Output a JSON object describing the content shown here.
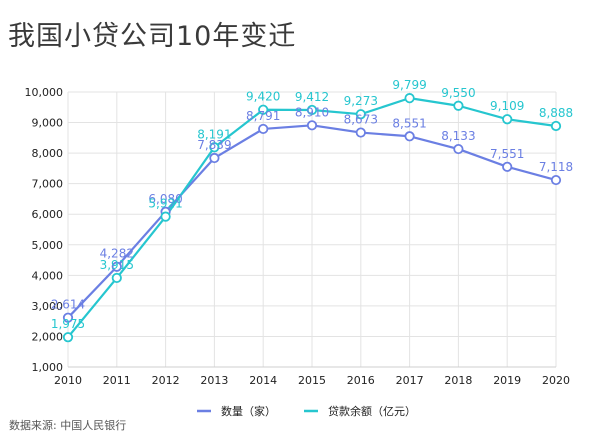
{
  "title": "我国小贷公司10年变迁",
  "source": "数据来源: 中国人民银行",
  "colors": {
    "series1": "#6b7fe3",
    "series2": "#26c6cf"
  },
  "chart_data": {
    "type": "line",
    "x": [
      2010,
      2011,
      2012,
      2013,
      2014,
      2015,
      2016,
      2017,
      2018,
      2019,
      2020
    ],
    "series": [
      {
        "name": "数量（家）",
        "color": "#6b7fe3",
        "values": [
          2614,
          4282,
          6080,
          7839,
          8791,
          8910,
          8673,
          8551,
          8133,
          7551,
          7118
        ],
        "labels": [
          "2,614",
          "4,282",
          "6,080",
          "7,839",
          "8,791",
          "8,910",
          "8,673",
          "8,551",
          "8,133",
          "7,551",
          "7,118"
        ]
      },
      {
        "name": "贷款余额（亿元）",
        "color": "#26c6cf",
        "values": [
          1975,
          3915,
          5921,
          8191,
          9420,
          9412,
          9273,
          9799,
          9550,
          9109,
          8888
        ],
        "labels": [
          "1,975",
          "3,915",
          "5,921",
          "8,191",
          "9,420",
          "9,412",
          "9,273",
          "9,799",
          "9,550",
          "9,109",
          "8,888"
        ]
      }
    ],
    "yticks": [
      "1,000",
      "2,000",
      "3,000",
      "4,000",
      "5,000",
      "6,000",
      "7,000",
      "8,000",
      "9,000",
      "10,000"
    ],
    "ytick_values": [
      1000,
      2000,
      3000,
      4000,
      5000,
      6000,
      7000,
      8000,
      9000,
      10000
    ],
    "ylim": [
      1000,
      10000
    ],
    "grid": true,
    "legend": "bottom-center"
  }
}
